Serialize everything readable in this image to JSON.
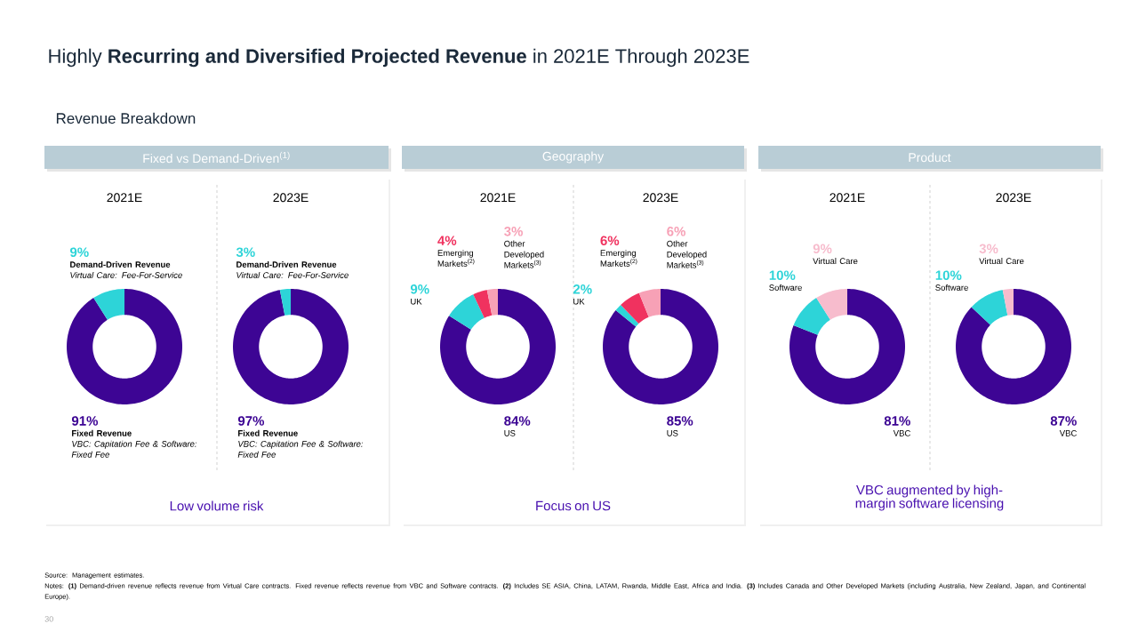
{
  "chart_data": [
    {
      "type": "other",
      "title": "Highly **Recurring and Diversified Projected Revenue** in 2021E Through 2023E",
      "subtitle": "Revenue Breakdown",
      "annotations": [
        "Source: Management estimates.",
        "Notes: **(1)** Demand-driven revenue reflects revenue from Virtual Care contracts. Fixed revenue reflects revenue from VBC and Software contracts. **(2)** Includes SE ASIA, China, LATAM, Rwanda, Middle East, Africa and India. **(3)** Includes Canada and Other Developed Markets (including Australia, New Zealand, Japan, and Continental Europe).",
        "30"
      ]
    },
    {
      "type": "donut",
      "title": "2021E",
      "subtitle": "Fixed vs Demand-Driven$^{(1)}$",
      "categories": [
        "Fixed Revenue",
        "Demand-Driven Revenue"
      ],
      "values": [
        91,
        9
      ],
      "colors": [
        "#3d0594",
        "#2dd4d8"
      ],
      "value_labels": [
        "91%",
        "9%"
      ],
      "annotations": [
        {
          "text": "VBC: Capitation Fee & Software: Fixed Fee",
          "x": "Fixed Revenue"
        },
        {
          "text": "Virtual Care: Fee-For-Service",
          "x": "Demand-Driven Revenue"
        },
        "Low volume risk"
      ]
    },
    {
      "type": "donut",
      "title": "2023E",
      "categories": [
        "Fixed Revenue",
        "Demand-Driven Revenue"
      ],
      "values": [
        97,
        3
      ],
      "colors": [
        "#3d0594",
        "#2dd4d8"
      ],
      "value_labels": [
        "97%",
        "3%"
      ],
      "annotations": [
        {
          "text": "VBC: Capitation Fee & Software: Fixed Fee",
          "x": "Fixed Revenue"
        },
        {
          "text": "Virtual Care: Fee-For-Service",
          "x": "Demand-Driven Revenue"
        }
      ]
    },
    {
      "type": "donut",
      "title": "2021E",
      "subtitle": "Geography",
      "categories": [
        "US",
        "UK",
        "Emerging Markets$^{(2)}$",
        "Other Developed Markets$^{(3)}$"
      ],
      "values": [
        84,
        9,
        4,
        3
      ],
      "colors": [
        "#3d0594",
        "#2dd4d8",
        "#f0325f",
        "#f7a1b6"
      ],
      "value_labels": [
        "84%",
        "9%",
        "4%",
        "3%"
      ],
      "annotations": [
        "Focus on US"
      ]
    },
    {
      "type": "donut",
      "title": "2023E",
      "categories": [
        "US",
        "UK",
        "Emerging Markets$^{(2)}$",
        "Other Developed Markets$^{(3)}$"
      ],
      "values": [
        85,
        2,
        6,
        6
      ],
      "colors": [
        "#3d0594",
        "#2dd4d8",
        "#f0325f",
        "#f7a1b6"
      ],
      "value_labels": [
        "85%",
        "2%",
        "6%",
        "6%"
      ]
    },
    {
      "type": "donut",
      "title": "2021E",
      "subtitle": "Product",
      "categories": [
        "VBC",
        "Software",
        "Virtual Care"
      ],
      "values": [
        81,
        10,
        9
      ],
      "colors": [
        "#3d0594",
        "#2dd4d8",
        "#f7bccd"
      ],
      "value_labels": [
        "81%",
        "10%",
        "9%"
      ],
      "annotations": [
        "VBC augmented by high-margin software licensing"
      ]
    },
    {
      "type": "donut",
      "title": "2023E",
      "categories": [
        "VBC",
        "Software",
        "Virtual Care"
      ],
      "values": [
        87,
        10,
        3
      ],
      "colors": [
        "#3d0594",
        "#2dd4d8",
        "#f7bccd"
      ],
      "value_labels": [
        "87%",
        "10%",
        "3%"
      ]
    }
  ]
}
